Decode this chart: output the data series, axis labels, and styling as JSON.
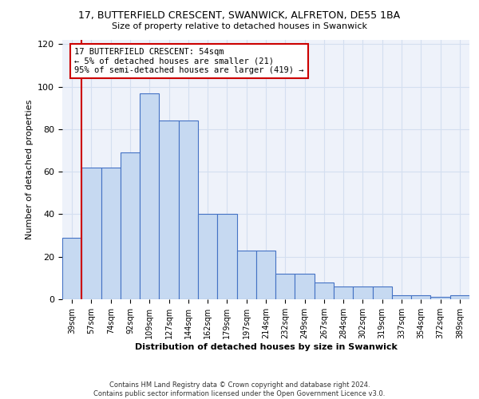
{
  "title_line1": "17, BUTTERFIELD CRESCENT, SWANWICK, ALFRETON, DE55 1BA",
  "title_line2": "Size of property relative to detached houses in Swanwick",
  "xlabel": "Distribution of detached houses by size in Swanwick",
  "ylabel": "Number of detached properties",
  "bar_values": [
    29,
    62,
    62,
    69,
    97,
    84,
    84,
    40,
    40,
    23,
    23,
    12,
    12,
    8,
    6,
    6,
    6,
    2,
    2,
    1,
    2
  ],
  "bar_labels": [
    "39sqm",
    "57sqm",
    "74sqm",
    "92sqm",
    "109sqm",
    "127sqm",
    "144sqm",
    "162sqm",
    "179sqm",
    "197sqm",
    "214sqm",
    "232sqm",
    "249sqm",
    "267sqm",
    "284sqm",
    "302sqm",
    "319sqm",
    "337sqm",
    "354sqm",
    "372sqm",
    "389sqm"
  ],
  "bar_color": "#c6d9f1",
  "bar_edge_color": "#4472c4",
  "grid_color": "#d4dff0",
  "background_color": "#eef2fa",
  "vline_color": "#cc0000",
  "annotation_text": "17 BUTTERFIELD CRESCENT: 54sqm\n← 5% of detached houses are smaller (21)\n95% of semi-detached houses are larger (419) →",
  "annotation_box_color": "#ffffff",
  "annotation_box_edge": "#cc0000",
  "ylim": [
    0,
    122
  ],
  "yticks": [
    0,
    20,
    40,
    60,
    80,
    100,
    120
  ],
  "footer_line1": "Contains HM Land Registry data © Crown copyright and database right 2024.",
  "footer_line2": "Contains public sector information licensed under the Open Government Licence v3.0."
}
